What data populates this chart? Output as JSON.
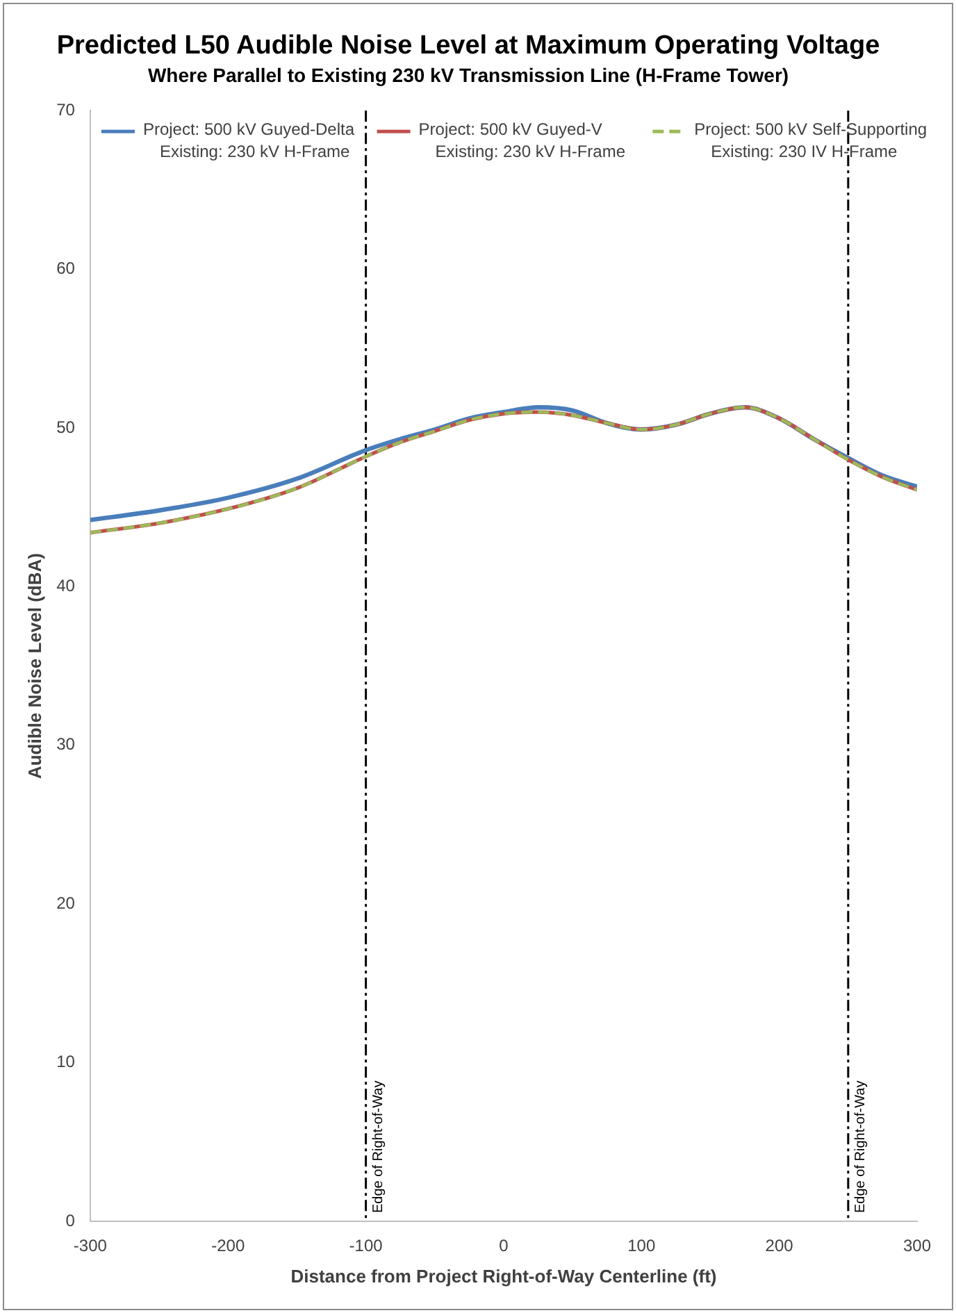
{
  "chart_data": {
    "type": "line",
    "title": "Predicted L50 Audible Noise Level at Maximum Operating Voltage",
    "subtitle": "Where Parallel to Existing 230 kV Transmission Line (H-Frame Tower)",
    "xlabel": "Distance from Project Right-of-Way Centerline (ft)",
    "ylabel": "Audible Noise Level (dBA)",
    "x": [
      -300,
      -250,
      -200,
      -150,
      -100,
      -75,
      -50,
      -25,
      0,
      25,
      50,
      75,
      100,
      125,
      150,
      175,
      200,
      225,
      250,
      275,
      300
    ],
    "series": [
      {
        "name": "Project: 500 kV Guyed-Delta\nExisting: 230 kV H-Frame",
        "color": "#4a7ebb",
        "line_style": "solid",
        "values": [
          44.2,
          44.8,
          45.6,
          46.8,
          48.6,
          49.3,
          49.9,
          50.6,
          51.0,
          51.3,
          51.1,
          50.3,
          49.9,
          50.2,
          50.9,
          51.3,
          50.6,
          49.3,
          48.1,
          47.0,
          46.3
        ]
      },
      {
        "name": "Project: 500 kV Guyed-V\nExisting: 230 kV H-Frame",
        "color": "#c0504d",
        "line_style": "solid",
        "values": [
          43.4,
          44.0,
          44.9,
          46.2,
          48.2,
          49.1,
          49.8,
          50.5,
          50.9,
          51.0,
          50.8,
          50.3,
          49.9,
          50.2,
          50.9,
          51.3,
          50.6,
          49.3,
          48.0,
          46.9,
          46.1
        ]
      },
      {
        "name": "Project: 500 kV Self-Supporting\nExisting: 230 IV H-Frame",
        "color": "#9bbb59",
        "line_style": "dashed",
        "values": [
          43.4,
          44.0,
          44.9,
          46.2,
          48.2,
          49.1,
          49.8,
          50.5,
          50.9,
          51.0,
          50.8,
          50.3,
          49.9,
          50.2,
          50.9,
          51.3,
          50.6,
          49.3,
          48.0,
          46.9,
          46.1
        ]
      }
    ],
    "xlim": [
      -300,
      300
    ],
    "xticks": [
      -300,
      -200,
      -100,
      0,
      100,
      200,
      300
    ],
    "ylim": [
      0,
      70
    ],
    "yticks": [
      0,
      10,
      20,
      30,
      40,
      50,
      60,
      70
    ],
    "ref_lines": [
      {
        "axis": "x",
        "value": -100,
        "label": "Edge of Right-of-Way",
        "color": "#000000",
        "line_style": "dashdot"
      },
      {
        "axis": "x",
        "value": 250,
        "label": "Edge of Right-of-Way",
        "color": "#000000",
        "line_style": "dashdot"
      }
    ],
    "grid": false,
    "legend": "top",
    "marker": "none"
  }
}
